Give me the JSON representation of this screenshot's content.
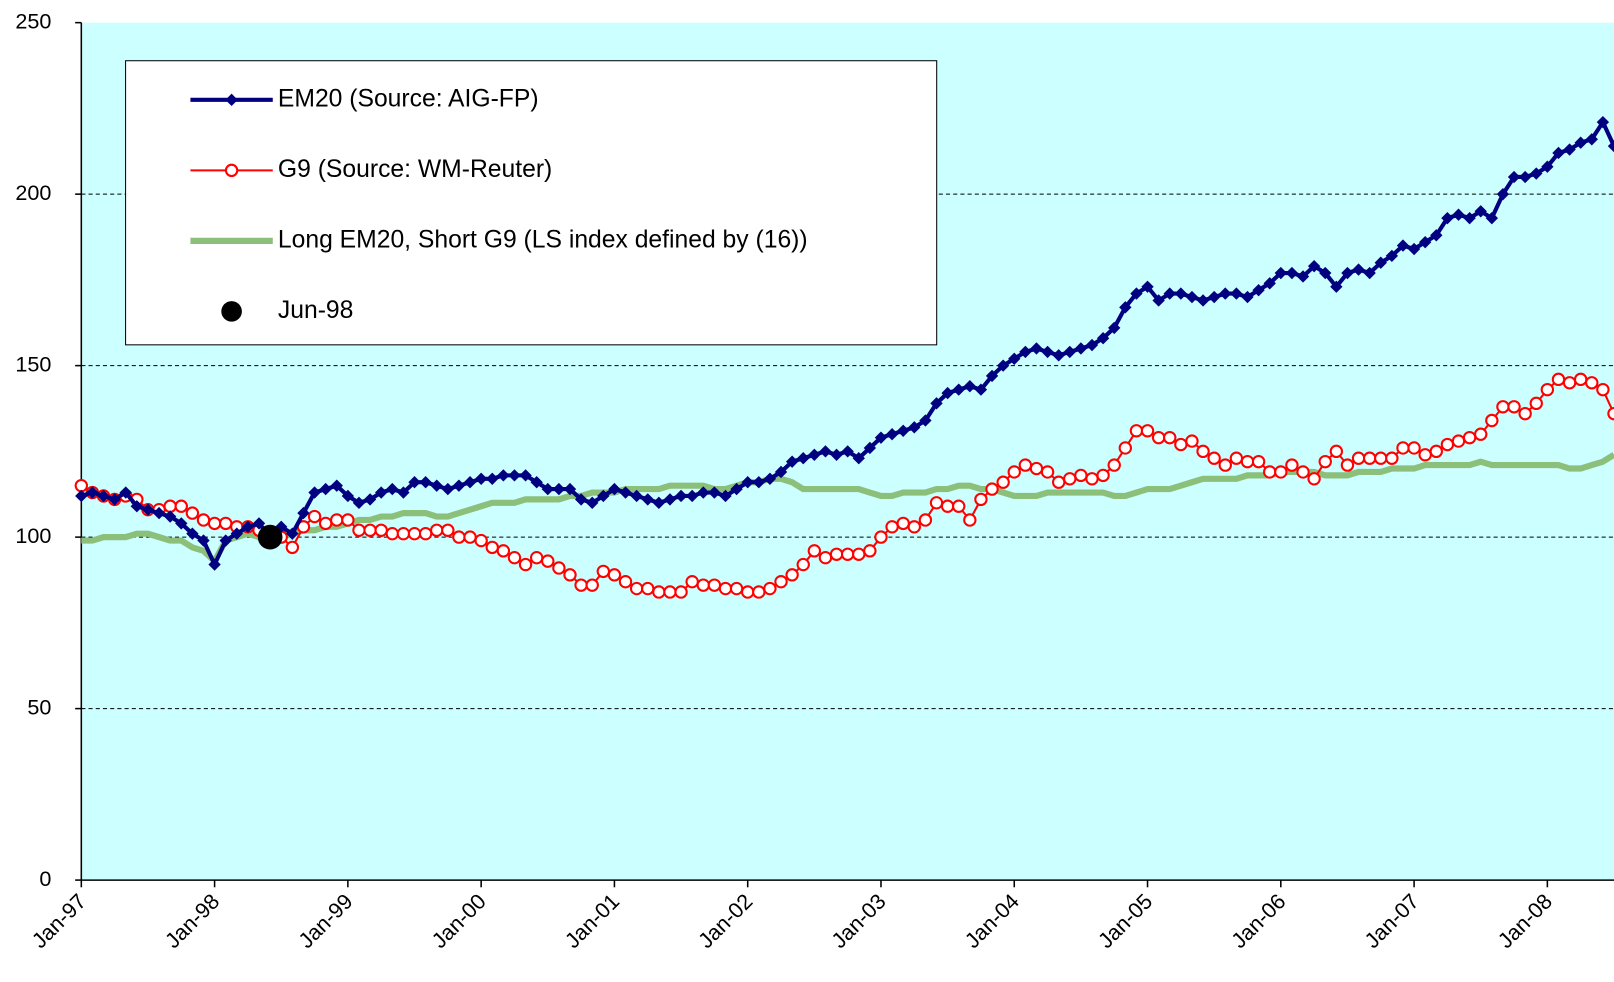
{
  "chart_data": {
    "type": "line",
    "categories": [
      "Jan-97",
      null,
      null,
      null,
      null,
      null,
      null,
      null,
      null,
      null,
      null,
      null,
      "Jan-98",
      null,
      null,
      null,
      null,
      null,
      null,
      null,
      null,
      null,
      null,
      null,
      "Jan-99",
      null,
      null,
      null,
      null,
      null,
      null,
      null,
      null,
      null,
      null,
      null,
      "Jan-00",
      null,
      null,
      null,
      null,
      null,
      null,
      null,
      null,
      null,
      null,
      null,
      "Jan-01",
      null,
      null,
      null,
      null,
      null,
      null,
      null,
      null,
      null,
      null,
      null,
      "Jan-02",
      null,
      null,
      null,
      null,
      null,
      null,
      null,
      null,
      null,
      null,
      null,
      "Jan-03",
      null,
      null,
      null,
      null,
      null,
      null,
      null,
      null,
      null,
      null,
      null,
      "Jan-04",
      null,
      null,
      null,
      null,
      null,
      null,
      null,
      null,
      null,
      null,
      null,
      "Jan-05",
      null,
      null,
      null,
      null,
      null,
      null,
      null,
      null,
      null,
      null,
      null,
      "Jan-06",
      null,
      null,
      null,
      null,
      null,
      null,
      null,
      null,
      null,
      null,
      null,
      "Jan-07",
      null,
      null,
      null,
      null,
      null,
      null,
      null,
      null,
      null,
      null,
      null,
      "Jan-08",
      null,
      null,
      null,
      null,
      null,
      null
    ],
    "series": [
      {
        "name": "EM20 (Source: AIG-FP)",
        "color": "#000080",
        "marker": "diamond",
        "line": true,
        "values": [
          112,
          113,
          112,
          111,
          113,
          109,
          108,
          107,
          106,
          104,
          101,
          99,
          92,
          99,
          101,
          103,
          104,
          100,
          103,
          101,
          107,
          113,
          114,
          115,
          112,
          110,
          111,
          113,
          114,
          113,
          116,
          116,
          115,
          114,
          115,
          116,
          117,
          117,
          118,
          118,
          118,
          116,
          114,
          114,
          114,
          111,
          110,
          112,
          114,
          113,
          112,
          111,
          110,
          111,
          112,
          112,
          113,
          113,
          112,
          114,
          116,
          116,
          117,
          119,
          122,
          123,
          124,
          125,
          124,
          125,
          123,
          126,
          129,
          130,
          131,
          132,
          134,
          139,
          142,
          143,
          144,
          143,
          147,
          150,
          152,
          154,
          155,
          154,
          153,
          154,
          155,
          156,
          158,
          161,
          167,
          171,
          173,
          169,
          171,
          171,
          170,
          169,
          170,
          171,
          171,
          170,
          172,
          174,
          177,
          177,
          176,
          179,
          177,
          173,
          177,
          178,
          177,
          180,
          182,
          185,
          184,
          186,
          188,
          193,
          194,
          193,
          195,
          193,
          200,
          205,
          205,
          206,
          208,
          212,
          213,
          215,
          216,
          221,
          214
        ]
      },
      {
        "name": "G9 (Source: WM-Reuter)",
        "color": "#ff0000",
        "marker": "circle",
        "line": true,
        "values": [
          115,
          113,
          112,
          111,
          112,
          111,
          108,
          108,
          109,
          109,
          107,
          105,
          104,
          104,
          103,
          103,
          102,
          101,
          100,
          97,
          103,
          106,
          104,
          105,
          105,
          102,
          102,
          102,
          101,
          101,
          101,
          101,
          102,
          102,
          100,
          100,
          99,
          97,
          96,
          94,
          92,
          94,
          93,
          91,
          89,
          86,
          86,
          90,
          89,
          87,
          85,
          85,
          84,
          84,
          84,
          87,
          86,
          86,
          85,
          85,
          84,
          84,
          85,
          87,
          89,
          92,
          96,
          94,
          95,
          95,
          95,
          96,
          100,
          103,
          104,
          103,
          105,
          110,
          109,
          109,
          105,
          111,
          114,
          116,
          119,
          121,
          120,
          119,
          116,
          117,
          118,
          117,
          118,
          121,
          126,
          131,
          131,
          129,
          129,
          127,
          128,
          125,
          123,
          121,
          123,
          122,
          122,
          119,
          119,
          121,
          119,
          117,
          122,
          125,
          121,
          123,
          123,
          123,
          123,
          126,
          126,
          124,
          125,
          127,
          128,
          129,
          130,
          134,
          138,
          138,
          136,
          139,
          143,
          146,
          145,
          146,
          145,
          143,
          136
        ]
      },
      {
        "name": "Long EM20, Short G9 (LS index defined by (16))",
        "color": "#8cc07a",
        "marker": "none",
        "line": true,
        "values": [
          99,
          99,
          100,
          100,
          100,
          101,
          101,
          100,
          99,
          99,
          97,
          96,
          93,
          99,
          100,
          101,
          100,
          100,
          100,
          101,
          102,
          102,
          103,
          103,
          104,
          105,
          105,
          106,
          106,
          107,
          107,
          107,
          106,
          106,
          107,
          108,
          109,
          110,
          110,
          110,
          111,
          111,
          111,
          111,
          112,
          112,
          113,
          113,
          113,
          114,
          114,
          114,
          114,
          115,
          115,
          115,
          115,
          114,
          114,
          115,
          116,
          116,
          117,
          117,
          116,
          114,
          114,
          114,
          114,
          114,
          114,
          113,
          112,
          112,
          113,
          113,
          113,
          114,
          114,
          115,
          115,
          114,
          114,
          113,
          112,
          112,
          112,
          113,
          113,
          113,
          113,
          113,
          113,
          112,
          112,
          113,
          114,
          114,
          114,
          115,
          116,
          117,
          117,
          117,
          117,
          118,
          118,
          118,
          119,
          119,
          119,
          119,
          118,
          118,
          118,
          119,
          119,
          119,
          120,
          120,
          120,
          121,
          121,
          121,
          121,
          121,
          122,
          121,
          121,
          121,
          121,
          121,
          121,
          121,
          120,
          120,
          121,
          122,
          124
        ]
      },
      {
        "name": "Jun-98",
        "color": "#000000",
        "marker": "dot",
        "line": false,
        "values": [
          null,
          null,
          null,
          null,
          null,
          null,
          null,
          null,
          null,
          null,
          null,
          null,
          null,
          null,
          null,
          null,
          null,
          100,
          null,
          null,
          null,
          null,
          null,
          null,
          null,
          null,
          null,
          null,
          null,
          null,
          null,
          null,
          null,
          null,
          null,
          null,
          null,
          null,
          null,
          null,
          null,
          null,
          null,
          null,
          null,
          null,
          null,
          null,
          null,
          null,
          null,
          null,
          null,
          null,
          null,
          null,
          null,
          null,
          null,
          null,
          null,
          null,
          null,
          null,
          null,
          null,
          null,
          null,
          null,
          null,
          null,
          null,
          null,
          null,
          null,
          null,
          null,
          null,
          null,
          null,
          null,
          null,
          null,
          null,
          null,
          null,
          null,
          null,
          null,
          null,
          null,
          null,
          null,
          null,
          null,
          null,
          null,
          null,
          null,
          null,
          null,
          null,
          null,
          null,
          null,
          null,
          null,
          null,
          null,
          null,
          null,
          null,
          null,
          null,
          null,
          null,
          null,
          null,
          null,
          null,
          null,
          null,
          null,
          null,
          null,
          null,
          null,
          null,
          null,
          null,
          null,
          null,
          null,
          null,
          null,
          null,
          null,
          null,
          null
        ]
      }
    ],
    "ylim": [
      0,
      250
    ],
    "yticks": [
      0,
      50,
      100,
      150,
      200,
      250
    ],
    "grid": true,
    "legend": "upper left",
    "background": "#ccffff"
  }
}
